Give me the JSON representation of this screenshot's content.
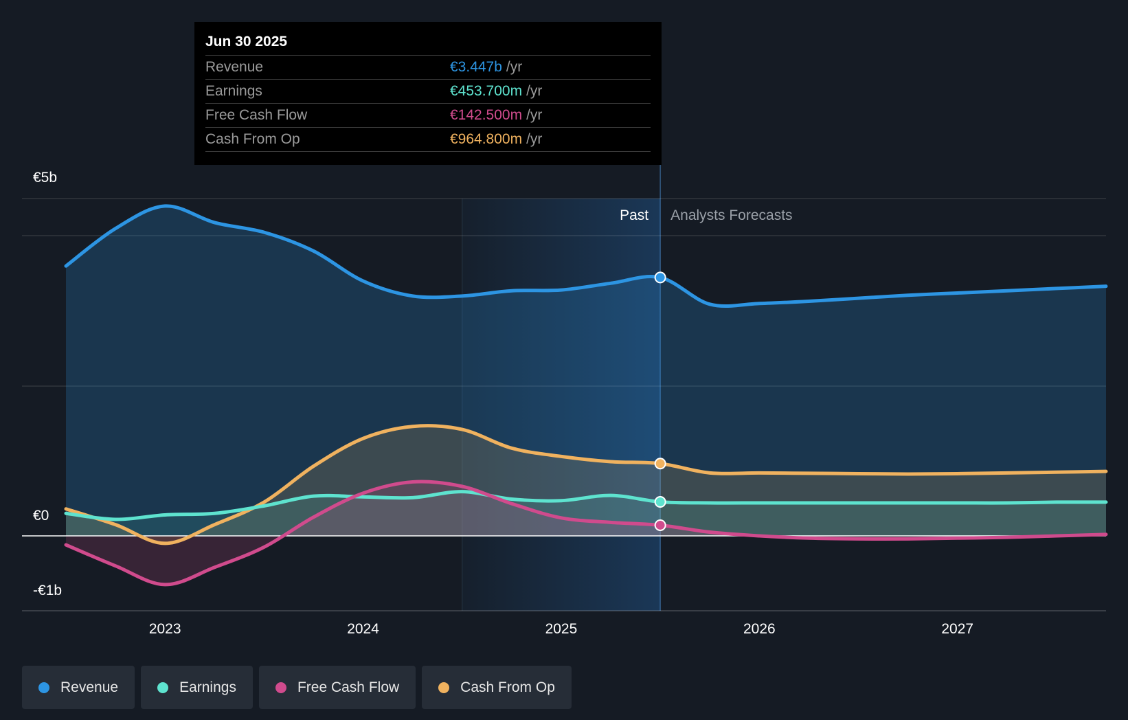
{
  "tooltip": {
    "date": "Jun 30 2025",
    "rows": [
      {
        "label": "Revenue",
        "value": "€3.447b",
        "unit": "/yr",
        "color": "#2d95e3"
      },
      {
        "label": "Earnings",
        "value": "€453.700m",
        "unit": "/yr",
        "color": "#5ee3cf"
      },
      {
        "label": "Free Cash Flow",
        "value": "€142.500m",
        "unit": "/yr",
        "color": "#d04b8d"
      },
      {
        "label": "Cash From Op",
        "value": "€964.800m",
        "unit": "/yr",
        "color": "#f0b25f"
      }
    ]
  },
  "labels": {
    "past": "Past",
    "forecast": "Analysts Forecasts"
  },
  "legend": [
    {
      "label": "Revenue",
      "color": "#2d95e3"
    },
    {
      "label": "Earnings",
      "color": "#5ee3cf"
    },
    {
      "label": "Free Cash Flow",
      "color": "#d04b8d"
    },
    {
      "label": "Cash From Op",
      "color": "#f0b25f"
    }
  ],
  "chart_data": {
    "type": "area",
    "title": "",
    "xlabel": "",
    "ylabel": "",
    "xlim": [
      2022.5,
      2027.75
    ],
    "ylim": [
      -1.0,
      4.5
    ],
    "y_ticks": [
      {
        "value": 4.5,
        "label": "€5b"
      },
      {
        "value": 0,
        "label": "€0"
      },
      {
        "value": -1.0,
        "label": "-€1b"
      }
    ],
    "x_ticks": [
      {
        "value": 2023.0,
        "label": "2023"
      },
      {
        "value": 2024.0,
        "label": "2024"
      },
      {
        "value": 2025.0,
        "label": "2025"
      },
      {
        "value": 2026.0,
        "label": "2026"
      },
      {
        "value": 2027.0,
        "label": "2027"
      }
    ],
    "past_end": 2025.5,
    "shade_start": 2024.5,
    "series": [
      {
        "name": "Revenue",
        "color": "#2d95e3",
        "x": [
          2022.5,
          2022.75,
          2023.0,
          2023.25,
          2023.5,
          2023.75,
          2024.0,
          2024.25,
          2024.5,
          2024.75,
          2025.0,
          2025.25,
          2025.5,
          2025.75,
          2026.0,
          2026.25,
          2026.5,
          2026.75,
          2027.0,
          2027.25,
          2027.5,
          2027.75
        ],
        "values": [
          3.6,
          4.1,
          4.4,
          4.18,
          4.05,
          3.8,
          3.4,
          3.2,
          3.2,
          3.27,
          3.28,
          3.37,
          3.447,
          3.09,
          3.1,
          3.13,
          3.17,
          3.21,
          3.24,
          3.27,
          3.3,
          3.33
        ]
      },
      {
        "name": "Earnings",
        "color": "#5ee3cf",
        "x": [
          2022.5,
          2022.75,
          2023.0,
          2023.25,
          2023.5,
          2023.75,
          2024.0,
          2024.25,
          2024.5,
          2024.75,
          2025.0,
          2025.25,
          2025.5,
          2025.75,
          2026.0,
          2026.25,
          2026.5,
          2026.75,
          2027.0,
          2027.25,
          2027.5,
          2027.75
        ],
        "values": [
          0.3,
          0.22,
          0.28,
          0.3,
          0.4,
          0.53,
          0.52,
          0.51,
          0.59,
          0.49,
          0.47,
          0.54,
          0.4537,
          0.44,
          0.44,
          0.44,
          0.44,
          0.44,
          0.44,
          0.44,
          0.45,
          0.45
        ]
      },
      {
        "name": "Free Cash Flow",
        "color": "#d04b8d",
        "x": [
          2022.5,
          2022.75,
          2023.0,
          2023.25,
          2023.5,
          2023.75,
          2024.0,
          2024.25,
          2024.5,
          2024.75,
          2025.0,
          2025.25,
          2025.5,
          2025.75,
          2026.0,
          2026.25,
          2026.5,
          2026.75,
          2027.0,
          2027.25,
          2027.5,
          2027.75
        ],
        "values": [
          -0.12,
          -0.4,
          -0.65,
          -0.42,
          -0.15,
          0.25,
          0.57,
          0.72,
          0.66,
          0.43,
          0.24,
          0.18,
          0.1425,
          0.05,
          0.0,
          -0.03,
          -0.04,
          -0.04,
          -0.03,
          -0.02,
          0.0,
          0.02
        ]
      },
      {
        "name": "Cash From Op",
        "color": "#f0b25f",
        "x": [
          2022.5,
          2022.75,
          2023.0,
          2023.25,
          2023.5,
          2023.75,
          2024.0,
          2024.25,
          2024.5,
          2024.75,
          2025.0,
          2025.25,
          2025.5,
          2025.75,
          2026.0,
          2026.25,
          2026.5,
          2026.75,
          2027.0,
          2027.25,
          2027.5,
          2027.75
        ],
        "values": [
          0.36,
          0.15,
          -0.1,
          0.15,
          0.45,
          0.93,
          1.3,
          1.46,
          1.42,
          1.17,
          1.06,
          0.99,
          0.9648,
          0.84,
          0.84,
          0.835,
          0.83,
          0.825,
          0.83,
          0.84,
          0.85,
          0.86
        ]
      }
    ],
    "highlight_points": [
      {
        "series": "Revenue",
        "x": 2025.5,
        "value": 3.447
      },
      {
        "series": "Earnings",
        "x": 2025.5,
        "value": 0.4537
      },
      {
        "series": "Free Cash Flow",
        "x": 2025.5,
        "value": 0.1425
      },
      {
        "series": "Cash From Op",
        "x": 2025.5,
        "value": 0.9648
      }
    ]
  }
}
